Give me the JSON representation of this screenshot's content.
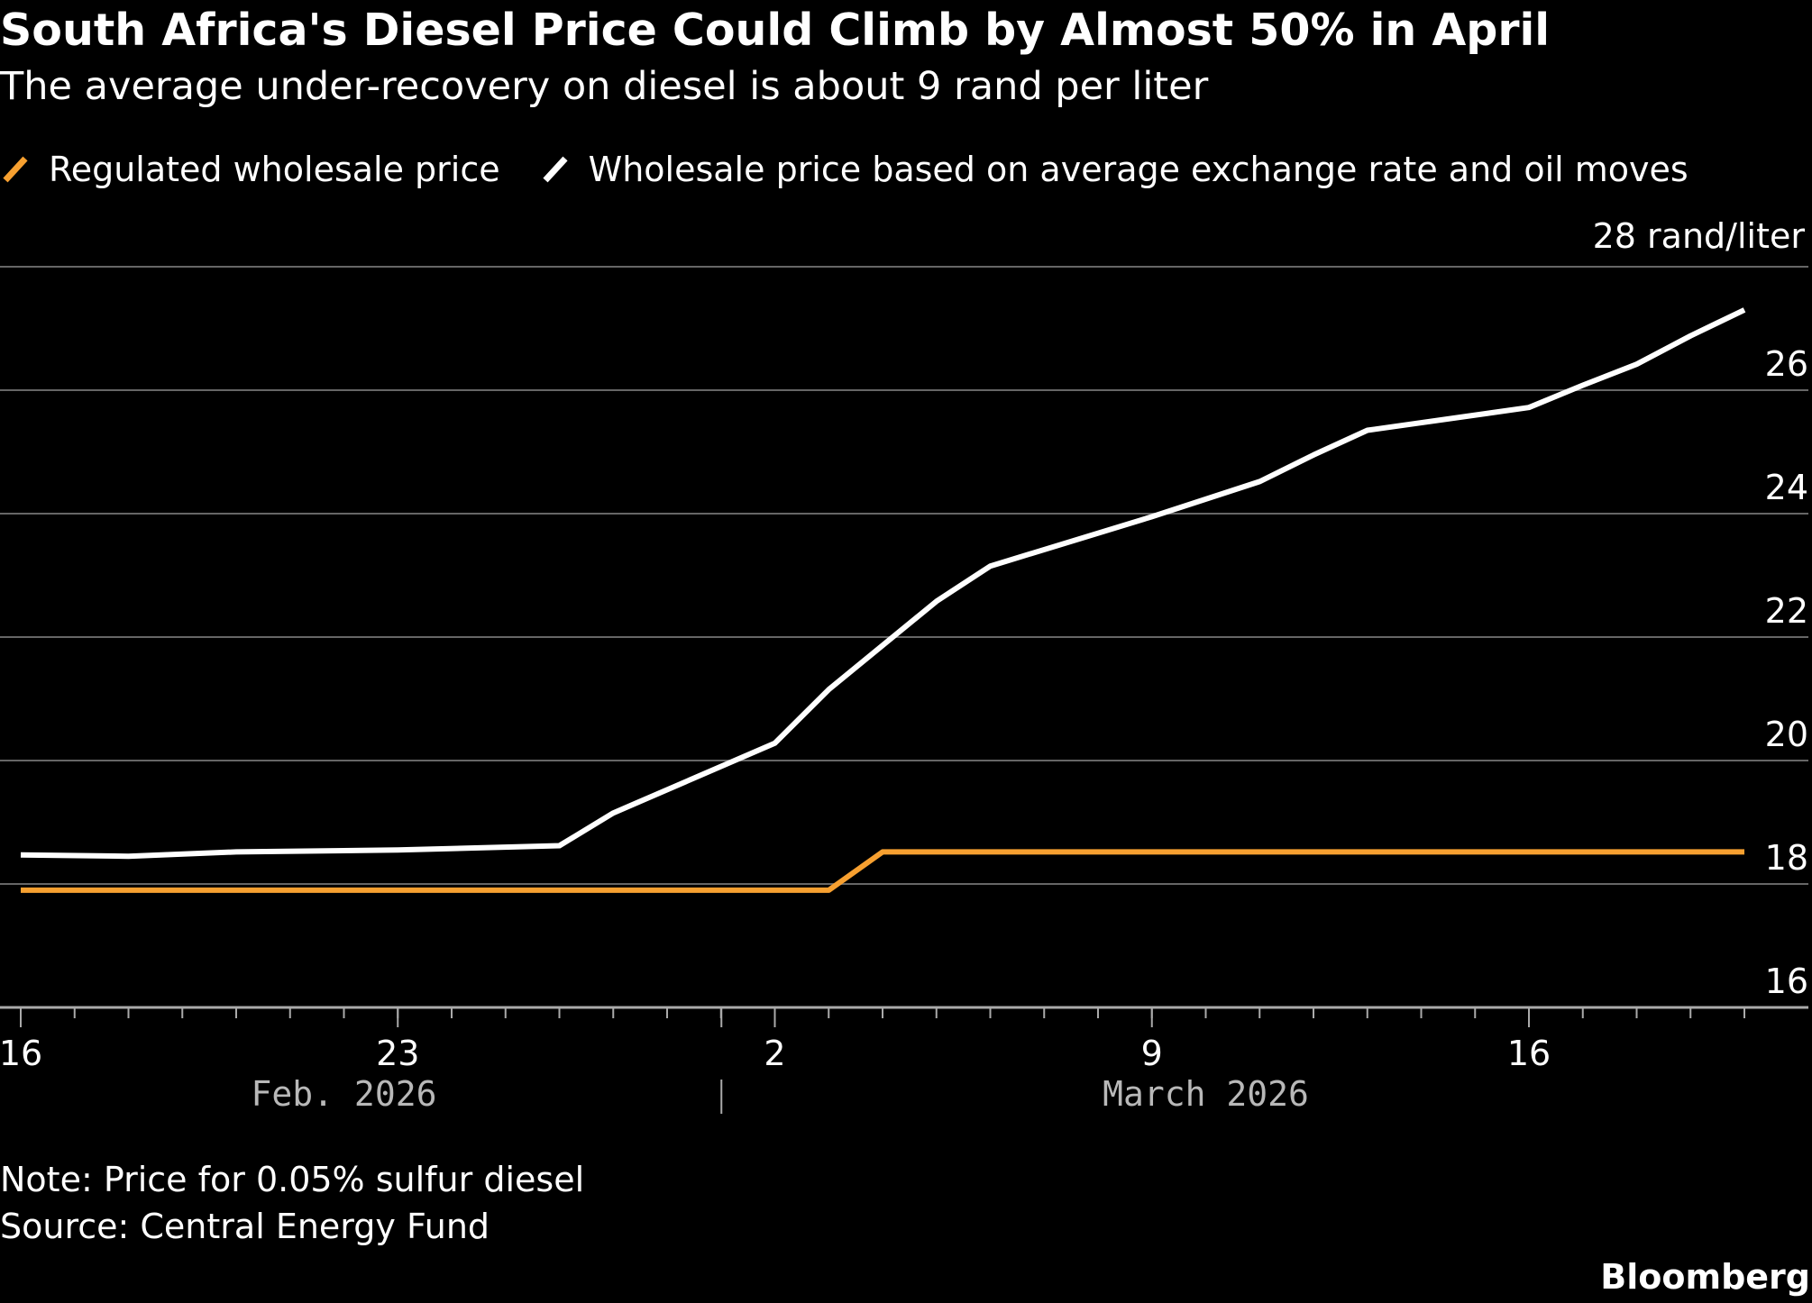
{
  "header": {
    "title": "South Africa's Diesel Price Could Climb by Almost 50% in April",
    "subtitle": "The average under-recovery on diesel is about 9 rand per liter"
  },
  "footer": {
    "note": "Note: Price for 0.05% sulfur diesel",
    "source": "Source: Central Energy Fund",
    "logo": "Bloomberg"
  },
  "colors": {
    "background": "#000000",
    "regulated": "#f7a030",
    "market": "#ffffff",
    "gridline": "#666666",
    "axis": "#aaaaaa",
    "month_label": "#b8b8b8"
  },
  "chart_data": {
    "type": "line",
    "unit_label": "28 rand/liter",
    "x_axis": {
      "type": "date",
      "range": [
        "2026-02-16",
        "2026-03-20"
      ],
      "tick_labels": [
        {
          "date": "2026-02-16",
          "label": "16"
        },
        {
          "date": "2026-02-23",
          "label": "23"
        },
        {
          "date": "2026-03-02",
          "label": "2"
        },
        {
          "date": "2026-03-09",
          "label": "9"
        },
        {
          "date": "2026-03-16",
          "label": "16"
        }
      ],
      "month_labels": [
        {
          "label": "Feb. 2026",
          "center_date": "2026-02-22"
        },
        {
          "label": "March 2026",
          "center_date": "2026-03-10"
        }
      ],
      "month_separator": "2026-03-01",
      "minor_ticks": "daily"
    },
    "y_axis": {
      "range": [
        16,
        28
      ],
      "ticks": [
        16,
        18,
        20,
        22,
        24,
        26,
        28
      ],
      "tick_labels": [
        "16",
        "18",
        "20",
        "22",
        "24",
        "26",
        ""
      ],
      "position": "right",
      "grid": true
    },
    "legend_position": "top-left",
    "series": [
      {
        "name": "Regulated wholesale price",
        "color": "#f7a030",
        "points": [
          {
            "x": "2026-02-16",
            "y": 17.9
          },
          {
            "x": "2026-03-03",
            "y": 17.9
          },
          {
            "x": "2026-03-04",
            "y": 18.52
          },
          {
            "x": "2026-03-20",
            "y": 18.52
          }
        ]
      },
      {
        "name": "Wholesale price based on average exchange rate and oil moves",
        "color": "#ffffff",
        "points": [
          {
            "x": "2026-02-16",
            "y": 18.47
          },
          {
            "x": "2026-02-18",
            "y": 18.45
          },
          {
            "x": "2026-02-20",
            "y": 18.52
          },
          {
            "x": "2026-02-23",
            "y": 18.55
          },
          {
            "x": "2026-02-26",
            "y": 18.62
          },
          {
            "x": "2026-02-27",
            "y": 19.15
          },
          {
            "x": "2026-03-02",
            "y": 20.28
          },
          {
            "x": "2026-03-03",
            "y": 21.15
          },
          {
            "x": "2026-03-05",
            "y": 22.58
          },
          {
            "x": "2026-03-06",
            "y": 23.15
          },
          {
            "x": "2026-03-09",
            "y": 23.95
          },
          {
            "x": "2026-03-11",
            "y": 24.52
          },
          {
            "x": "2026-03-12",
            "y": 24.95
          },
          {
            "x": "2026-03-13",
            "y": 25.35
          },
          {
            "x": "2026-03-16",
            "y": 25.72
          },
          {
            "x": "2026-03-17",
            "y": 26.08
          },
          {
            "x": "2026-03-18",
            "y": 26.42
          },
          {
            "x": "2026-03-19",
            "y": 26.88
          },
          {
            "x": "2026-03-20",
            "y": 27.3
          }
        ]
      }
    ]
  }
}
